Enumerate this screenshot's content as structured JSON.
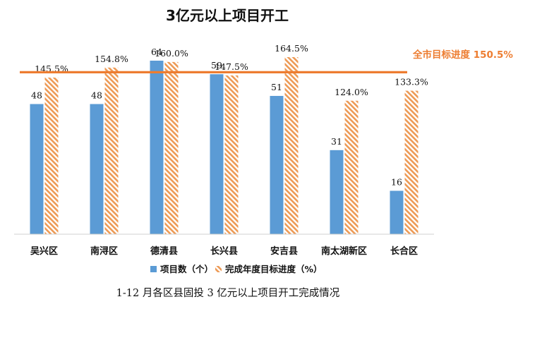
{
  "chart_data": {
    "type": "bar",
    "title": "3亿元以上项目开工",
    "categories": [
      "吴兴区",
      "南浔区",
      "德清县",
      "长兴县",
      "安吉县",
      "南太湖新区",
      "长合区"
    ],
    "series": [
      {
        "name": "项目数（个）",
        "values": [
          48,
          48,
          64,
          59,
          51,
          31,
          16
        ],
        "labels": [
          "48",
          "48",
          "64",
          "59",
          "51",
          "31",
          "16"
        ]
      },
      {
        "name": "完成年度目标进度（%）",
        "values": [
          145.5,
          154.8,
          160.0,
          147.5,
          164.5,
          124.0,
          133.3
        ],
        "labels": [
          "145.5%",
          "154.8%",
          "160.0%",
          "147.5%",
          "164.5%",
          "124.0%",
          "133.3%"
        ]
      }
    ],
    "target": {
      "label": "全市目标进度 150.5%",
      "value": 150.5
    },
    "legend_position": "bottom",
    "grid": false,
    "caption": "1-12 月各区县固投 3 亿元以上项目开工完成情况"
  },
  "colors": {
    "projects": "#5b9bd5",
    "progress_stripe": "#ed9a55",
    "target": "#ed7d31"
  }
}
